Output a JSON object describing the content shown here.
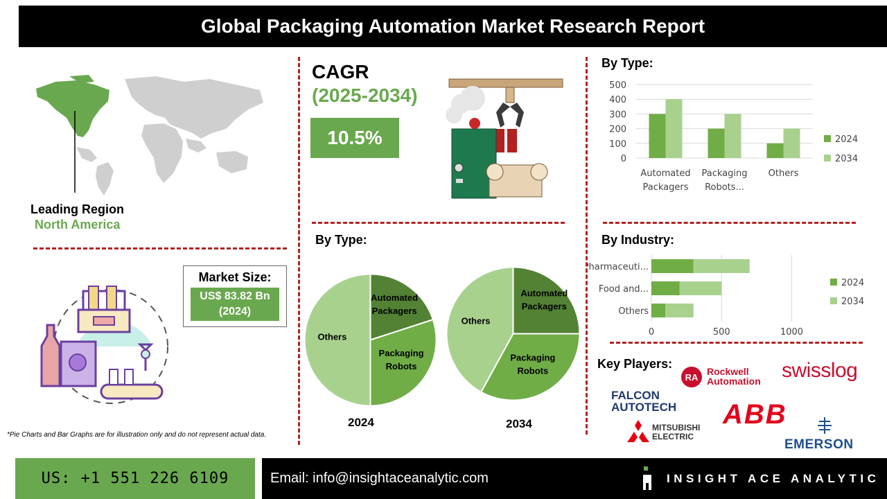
{
  "title": "Global Packaging Automation Market Research Report",
  "region": {
    "label": "Leading Region",
    "value": "North America"
  },
  "cagr": {
    "label": "CAGR",
    "period": "(2025-2034)",
    "value": "10.5%"
  },
  "market_size": {
    "label": "Market Size:",
    "value": "US$ 83.82 Bn",
    "year": "(2024)"
  },
  "disclaimer": "*Pie Charts and Bar Graphs are for illustration only and do not represent actual data.",
  "key_players": {
    "label": "Key Players:",
    "names": [
      "Rockwell Automation",
      "swisslog",
      "FALCON AUTOTECH",
      "ABB",
      "MITSUBISHI ELECTRIC",
      "EMERSON"
    ]
  },
  "footer": {
    "phone": "US: +1 551 226 6109",
    "email": "Email: info@insightaceanalytic.com",
    "brand": "INSIGHT ACE ANALYTIC"
  },
  "colors": {
    "dark_green": "#548235",
    "mid_green": "#70ad47",
    "light_green": "#a9d18e",
    "accent_red": "#b22222",
    "header_bg": "#000000",
    "green_box": "#6aa84f"
  },
  "chart_data": [
    {
      "type": "bar",
      "title": "By Type:",
      "categories": [
        "Automated Packagers",
        "Packaging Robots...",
        "Others"
      ],
      "series": [
        {
          "name": "2024",
          "values": [
            300,
            200,
            100
          ]
        },
        {
          "name": "2034",
          "values": [
            400,
            300,
            200
          ]
        }
      ],
      "ylim": [
        0,
        500
      ],
      "yticks": [
        "0",
        "100",
        "200",
        "300",
        "400",
        "500"
      ],
      "grid": true,
      "legend": "right"
    },
    {
      "type": "pie",
      "title": "By Type:",
      "caption": "2024",
      "labels": [
        "Automated Packagers",
        "Packaging Robots",
        "Others"
      ],
      "values": [
        20,
        30,
        50
      ]
    },
    {
      "type": "pie",
      "caption": "2034",
      "labels": [
        "Automated Packagers",
        "Packaging Robots",
        "Others"
      ],
      "values": [
        25,
        33,
        42
      ]
    },
    {
      "type": "bar",
      "orientation": "horizontal",
      "stacked": true,
      "title": "By Industry:",
      "categories": [
        "Pharmaceuti...",
        "Food and...",
        "Others"
      ],
      "series": [
        {
          "name": "2024",
          "values": [
            300,
            200,
            100
          ]
        },
        {
          "name": "2034",
          "values": [
            400,
            300,
            200
          ]
        }
      ],
      "xlim": [
        0,
        1200
      ],
      "xticks": [
        "0",
        "500",
        "1000"
      ],
      "legend": "right"
    }
  ]
}
